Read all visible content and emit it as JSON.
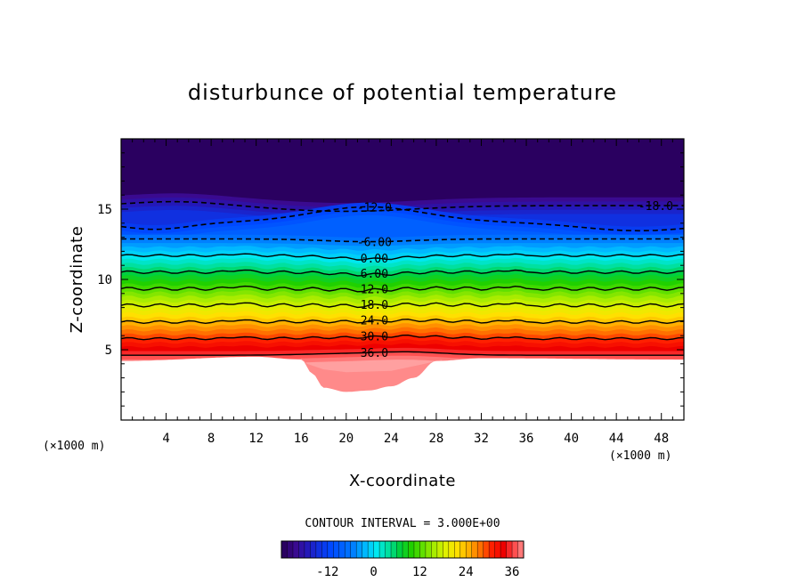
{
  "chart_data": {
    "type": "heatmap",
    "subtype": "filled contour",
    "title": "disturbunce of potential temperature",
    "xlabel": "X-coordinate",
    "ylabel": "Z-coordinate",
    "x_unit": "(×1000 m)",
    "z_unit": "(×1000 m)",
    "xlim": [
      0,
      50
    ],
    "ylim": [
      0,
      20
    ],
    "x_ticks": [
      4,
      8,
      12,
      16,
      20,
      24,
      28,
      32,
      36,
      40,
      44,
      48
    ],
    "y_ticks": [
      5,
      10,
      15
    ],
    "contour_interval_label": "CONTOUR INTERVAL = 3.000E+00",
    "contour_labels": [
      "-18.0",
      "-12.0",
      "-6.00",
      "0.00",
      "6.00",
      "12.0",
      "18.0",
      "24.0",
      "30.0",
      "36.0"
    ],
    "negative_contours": "dashed",
    "terrain": {
      "description": "mountain-shaped undisturbed (blank) region at bottom",
      "x": [
        0,
        12,
        16,
        17,
        18,
        20,
        22,
        24,
        26,
        28,
        32,
        50
      ],
      "z_top": [
        4.2,
        4.5,
        4.3,
        3.3,
        2.3,
        2.0,
        2.1,
        2.4,
        3.0,
        4.2,
        4.4,
        4.3
      ]
    },
    "colorbar": {
      "range": [
        -24,
        39
      ],
      "tick_labels": [
        "-12",
        "0",
        "12",
        "24",
        "36"
      ],
      "tick_values": [
        -12,
        0,
        12,
        24,
        36
      ]
    },
    "colors": {
      "cold": "#1a0066",
      "blue": "#0050ff",
      "cyan": "#00ffff",
      "green": "#00cc00",
      "yellow": "#ffee00",
      "red": "#ee0000",
      "pink": "#ff8080"
    }
  }
}
